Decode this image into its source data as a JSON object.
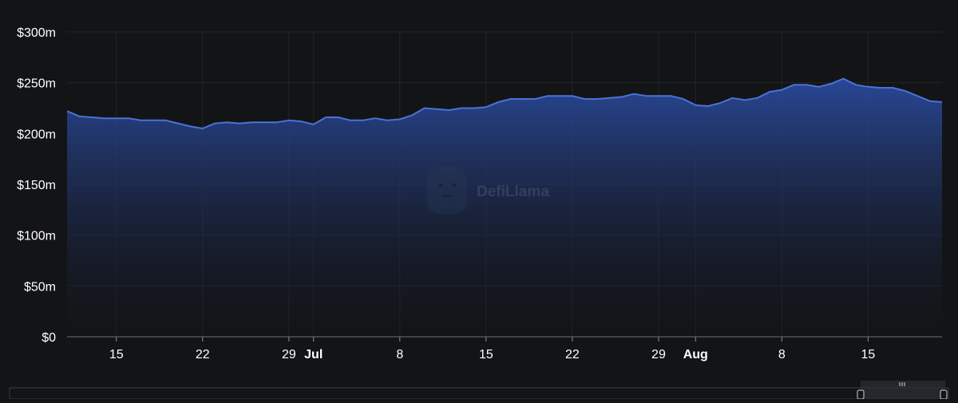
{
  "chart_data": {
    "type": "area",
    "y_ticks": [
      "$0",
      "$50m",
      "$100m",
      "$150m",
      "$200m",
      "$250m",
      "$300m"
    ],
    "ylim": [
      0,
      300
    ],
    "x_ticks": [
      {
        "label": "15",
        "date": "2023-06-15",
        "bold": false
      },
      {
        "label": "22",
        "date": "2023-06-22",
        "bold": false
      },
      {
        "label": "29",
        "date": "2023-06-29",
        "bold": false
      },
      {
        "label": "Jul",
        "date": "2023-07-01",
        "bold": true
      },
      {
        "label": "8",
        "date": "2023-07-08",
        "bold": false
      },
      {
        "label": "15",
        "date": "2023-07-15",
        "bold": false
      },
      {
        "label": "22",
        "date": "2023-07-22",
        "bold": false
      },
      {
        "label": "29",
        "date": "2023-07-29",
        "bold": false
      },
      {
        "label": "Aug",
        "date": "2023-08-01",
        "bold": true
      },
      {
        "label": "8",
        "date": "2023-08-08",
        "bold": false
      },
      {
        "label": "15",
        "date": "2023-08-15",
        "bold": false
      }
    ],
    "grid": true,
    "colors": {
      "line": "#4a72d8",
      "fill_top": "#2a4a9e",
      "background": "#131416",
      "grid": "#22252a",
      "text": "#ffffff"
    },
    "series": [
      {
        "x": [
          "2023-06-11",
          "2023-06-12",
          "2023-06-13",
          "2023-06-14",
          "2023-06-15",
          "2023-06-16",
          "2023-06-17",
          "2023-06-18",
          "2023-06-19",
          "2023-06-20",
          "2023-06-21",
          "2023-06-22",
          "2023-06-23",
          "2023-06-24",
          "2023-06-25",
          "2023-06-26",
          "2023-06-27",
          "2023-06-28",
          "2023-06-29",
          "2023-06-30",
          "2023-07-01",
          "2023-07-02",
          "2023-07-03",
          "2023-07-04",
          "2023-07-05",
          "2023-07-06",
          "2023-07-07",
          "2023-07-08",
          "2023-07-09",
          "2023-07-10",
          "2023-07-11",
          "2023-07-12",
          "2023-07-13",
          "2023-07-14",
          "2023-07-15",
          "2023-07-16",
          "2023-07-17",
          "2023-07-18",
          "2023-07-19",
          "2023-07-20",
          "2023-07-21",
          "2023-07-22",
          "2023-07-23",
          "2023-07-24",
          "2023-07-25",
          "2023-07-26",
          "2023-07-27",
          "2023-07-28",
          "2023-07-29",
          "2023-07-30",
          "2023-07-31",
          "2023-08-01",
          "2023-08-02",
          "2023-08-03",
          "2023-08-04",
          "2023-08-05",
          "2023-08-06",
          "2023-08-07",
          "2023-08-08",
          "2023-08-09",
          "2023-08-10",
          "2023-08-11",
          "2023-08-12",
          "2023-08-13",
          "2023-08-14",
          "2023-08-15",
          "2023-08-16",
          "2023-08-17",
          "2023-08-18",
          "2023-08-19",
          "2023-08-20",
          "2023-08-21"
        ],
        "values": [
          222,
          217,
          216,
          215,
          215,
          215,
          213,
          213,
          213,
          210,
          207,
          205,
          210,
          211,
          210,
          211,
          211,
          211,
          213,
          212,
          209,
          216,
          216,
          213,
          213,
          215,
          213,
          214,
          218,
          225,
          224,
          223,
          225,
          225,
          226,
          231,
          234,
          234,
          234,
          237,
          237,
          237,
          234,
          234,
          235,
          236,
          239,
          237,
          237,
          237,
          234,
          228,
          227,
          230,
          235,
          233,
          235,
          241,
          243,
          248,
          248,
          246,
          249,
          254,
          248,
          246,
          245,
          245,
          242,
          237,
          232,
          231
        ]
      }
    ]
  },
  "watermark": {
    "label": "DefiLlama"
  }
}
